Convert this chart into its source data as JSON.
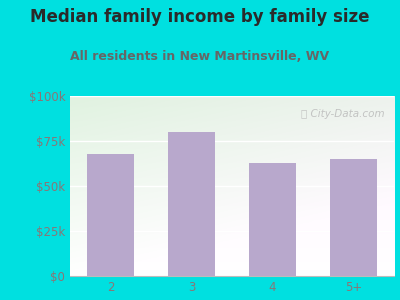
{
  "title": "Median family income by family size",
  "subtitle": "All residents in New Martinsville, WV",
  "categories": [
    "2",
    "3",
    "4",
    "5+"
  ],
  "values": [
    68000,
    80000,
    63000,
    65000
  ],
  "bar_color": "#b8a8cc",
  "background_outer": "#00e0e0",
  "title_color": "#2a2a2a",
  "subtitle_color": "#666666",
  "tick_label_color": "#887777",
  "ylim": [
    0,
    100000
  ],
  "yticks": [
    0,
    25000,
    50000,
    75000,
    100000
  ],
  "ytick_labels": [
    "$0",
    "$25k",
    "$50k",
    "$75k",
    "$100k"
  ],
  "watermark": "City-Data.com",
  "title_fontsize": 12,
  "subtitle_fontsize": 9,
  "tick_fontsize": 8.5
}
